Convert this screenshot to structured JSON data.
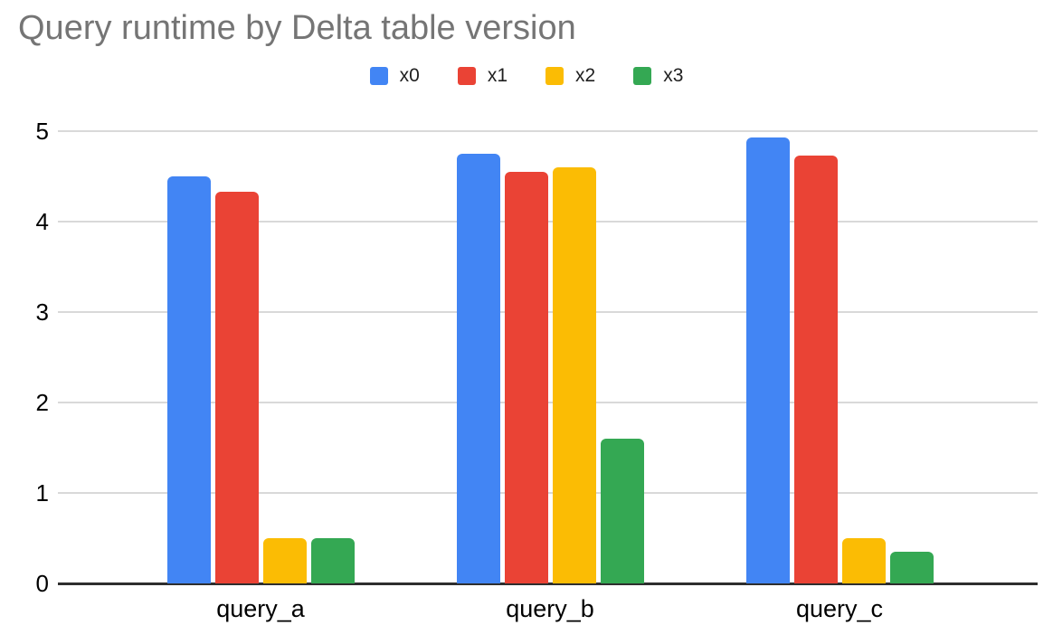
{
  "title": "Query runtime by Delta table version",
  "chart_data": {
    "type": "bar",
    "title": "Query runtime by Delta table version",
    "categories": [
      "query_a",
      "query_b",
      "query_c"
    ],
    "series": [
      {
        "name": "x0",
        "color": "#4285F4",
        "values": [
          4.5,
          4.75,
          4.93
        ]
      },
      {
        "name": "x1",
        "color": "#EA4335",
        "values": [
          4.33,
          4.55,
          4.73
        ]
      },
      {
        "name": "x2",
        "color": "#FBBC04",
        "values": [
          0.5,
          4.6,
          0.5
        ]
      },
      {
        "name": "x3",
        "color": "#34A853",
        "values": [
          0.5,
          1.6,
          0.35
        ]
      }
    ],
    "xlabel": "",
    "ylabel": "",
    "ylim": [
      0,
      5
    ],
    "yticks": [
      0,
      1,
      2,
      3,
      4,
      5
    ],
    "grid": true,
    "legend_position": "top",
    "title_color": "#757575",
    "grid_color": "#d9d9d9",
    "axis_color": "#2e2e2e",
    "label_color": "#000000",
    "legend_text_color": "#1f1f1f",
    "background": "#ffffff"
  }
}
